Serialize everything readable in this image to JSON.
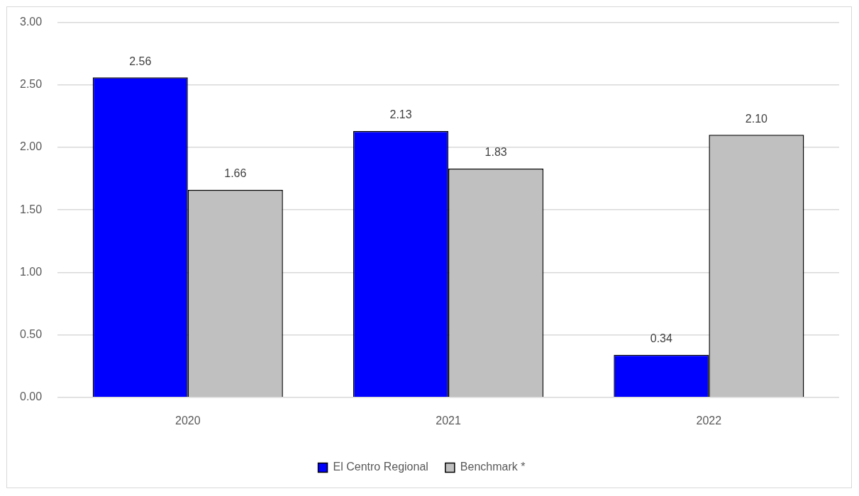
{
  "chart_data": {
    "type": "bar",
    "categories": [
      "2020",
      "2021",
      "2022"
    ],
    "series": [
      {
        "name": "El Centro Regional",
        "color": "#0000ff",
        "values": [
          2.56,
          2.13,
          0.34
        ],
        "value_labels": [
          "2.56",
          "2.13",
          "0.34"
        ]
      },
      {
        "name": "Benchmark *",
        "color": "#c0c0c0",
        "values": [
          1.66,
          1.83,
          2.1
        ],
        "value_labels": [
          "1.66",
          "1.83",
          "2.10"
        ]
      }
    ],
    "ylim": [
      0,
      3
    ],
    "yticks": [
      {
        "value": 0,
        "label": "0.00"
      },
      {
        "value": 0.5,
        "label": "0.50"
      },
      {
        "value": 1,
        "label": "1.00"
      },
      {
        "value": 1.5,
        "label": "1.50"
      },
      {
        "value": 2,
        "label": "2.00"
      },
      {
        "value": 2.5,
        "label": "2.50"
      },
      {
        "value": 3,
        "label": "3.00"
      }
    ],
    "grid": "y",
    "legend": "bottom"
  }
}
